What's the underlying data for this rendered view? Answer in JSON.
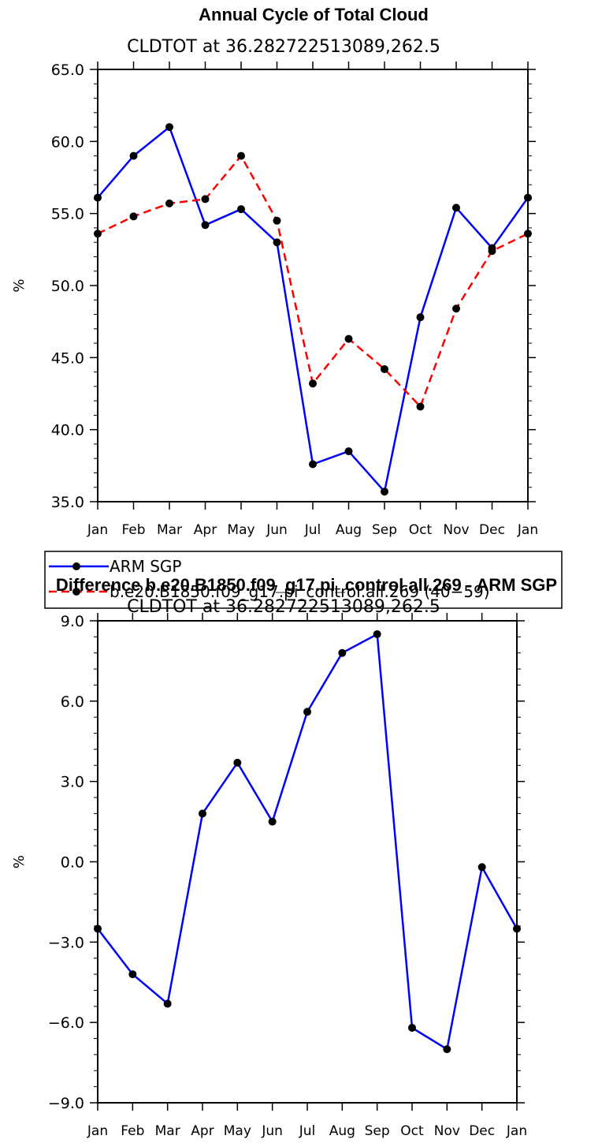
{
  "chart_data": [
    {
      "type": "line",
      "title": "Annual Cycle of Total Cloud",
      "subtitle": "CLDTOT at 36.282722513089,262.5",
      "ylabel": "%",
      "ylim": [
        35.0,
        65.0
      ],
      "yticks": [
        "35.0",
        "40.0",
        "45.0",
        "50.0",
        "55.0",
        "60.0",
        "65.0"
      ],
      "categories": [
        "Jan",
        "Feb",
        "Mar",
        "Apr",
        "May",
        "Jun",
        "Jul",
        "Aug",
        "Sep",
        "Oct",
        "Nov",
        "Dec",
        "Jan"
      ],
      "series": [
        {
          "name": "ARM SGP",
          "color": "#0000ff",
          "style": "solid",
          "values": [
            56.1,
            59.0,
            61.0,
            54.2,
            55.3,
            53.0,
            37.6,
            38.5,
            35.7,
            47.8,
            55.4,
            52.6,
            56.1
          ]
        },
        {
          "name": "b.e20.B1850.f09_g17.pi_control.all.269 (40−59)",
          "color": "#ff0000",
          "style": "dashed",
          "values": [
            53.6,
            54.8,
            55.7,
            56.0,
            59.0,
            54.5,
            43.2,
            46.3,
            44.2,
            41.6,
            48.4,
            52.4,
            53.6
          ]
        }
      ],
      "legend": "below"
    },
    {
      "type": "line",
      "title": "Difference b.e20.B1850.f09_g17.pi_control.all.269 - ARM SGP",
      "subtitle": "CLDTOT at 36.282722513089,262.5",
      "ylabel": "%",
      "ylim": [
        -9.0,
        9.0
      ],
      "yticks": [
        "−9.0",
        "−6.0",
        "−3.0",
        "0.0",
        "3.0",
        "6.0",
        "9.0"
      ],
      "categories": [
        "Jan",
        "Feb",
        "Mar",
        "Apr",
        "May",
        "Jun",
        "Jul",
        "Aug",
        "Sep",
        "Oct",
        "Nov",
        "Dec",
        "Jan"
      ],
      "series": [
        {
          "color": "#0000ff",
          "style": "solid",
          "values": [
            -2.5,
            -4.2,
            -5.3,
            1.8,
            3.7,
            1.5,
            5.6,
            7.8,
            8.5,
            -6.2,
            -7.0,
            -0.2,
            -2.5
          ]
        }
      ]
    }
  ]
}
